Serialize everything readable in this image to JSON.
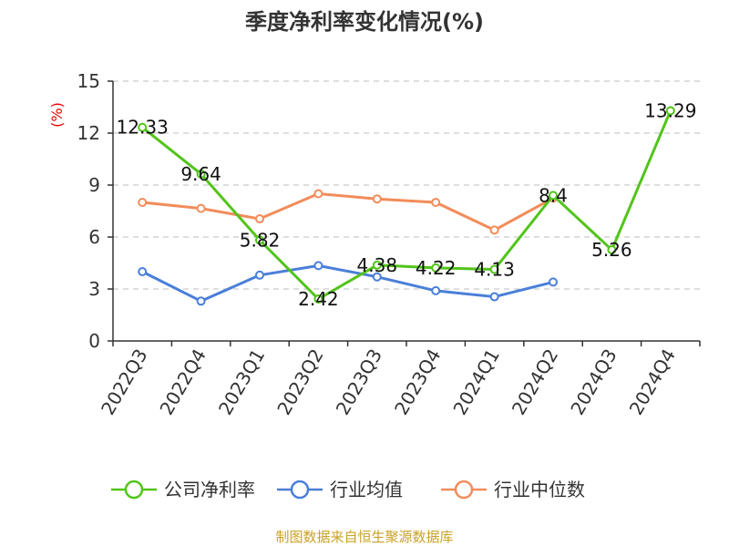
{
  "chart_data": {
    "type": "line",
    "title": "季度净利率变化情况(%)",
    "ylabel": "(%)",
    "xlabel": "",
    "categories": [
      "2022Q3",
      "2022Q4",
      "2023Q1",
      "2023Q2",
      "2023Q3",
      "2023Q4",
      "2024Q1",
      "2024Q2",
      "2024Q3",
      "2024Q4"
    ],
    "ylim": [
      0,
      15
    ],
    "yticks": [
      0,
      3,
      6,
      9,
      12,
      15
    ],
    "grid": true,
    "legend_position": "bottom",
    "series": [
      {
        "name": "公司净利率",
        "color": "#52c41a",
        "values": [
          12.33,
          9.64,
          5.82,
          2.42,
          4.38,
          4.22,
          4.13,
          8.4,
          5.26,
          13.29
        ],
        "labels": [
          "12.33",
          "9.64",
          "5.82",
          "2.42",
          "4.38",
          "4.22",
          "4.13",
          "8.4",
          "5.26",
          "13.29"
        ]
      },
      {
        "name": "行业均值",
        "color": "#4a7fd8",
        "values": [
          4.0,
          2.3,
          3.8,
          4.35,
          3.7,
          2.9,
          2.55,
          3.4,
          null,
          null
        ]
      },
      {
        "name": "行业中位数",
        "color": "#f28c5a",
        "values": [
          8.0,
          7.65,
          7.05,
          8.5,
          8.2,
          8.0,
          6.4,
          8.25,
          null,
          null
        ]
      }
    ]
  },
  "source": "制图数据来自恒生聚源数据库"
}
